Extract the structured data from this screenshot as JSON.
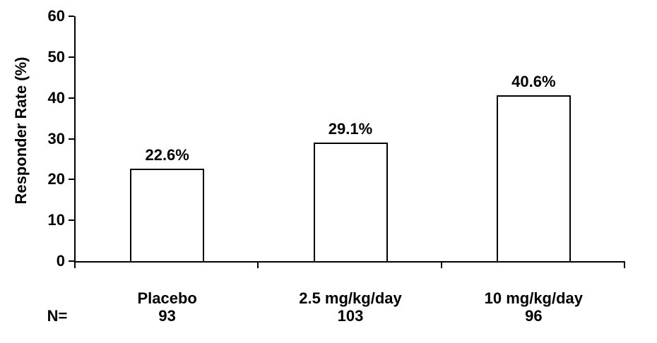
{
  "chart_data": {
    "type": "bar",
    "title": "",
    "xlabel": "",
    "ylabel": "Responder Rate (%)",
    "ylim": [
      0,
      60
    ],
    "yticks": [
      0,
      10,
      20,
      30,
      40,
      50,
      60
    ],
    "grid": false,
    "legend": false,
    "categories": [
      "Placebo",
      "2.5 mg/kg/day",
      "10 mg/kg/day"
    ],
    "values": [
      22.6,
      29.1,
      40.6
    ],
    "value_labels": [
      "22.6%",
      "29.1%",
      "40.6%"
    ],
    "n_prefix": "N=",
    "n_values": [
      "93",
      "103",
      "96"
    ],
    "colors": {
      "bar_fill": "#ffffff",
      "bar_border": "#000000",
      "axis": "#000000",
      "text": "#000000",
      "background": "#ffffff"
    }
  }
}
